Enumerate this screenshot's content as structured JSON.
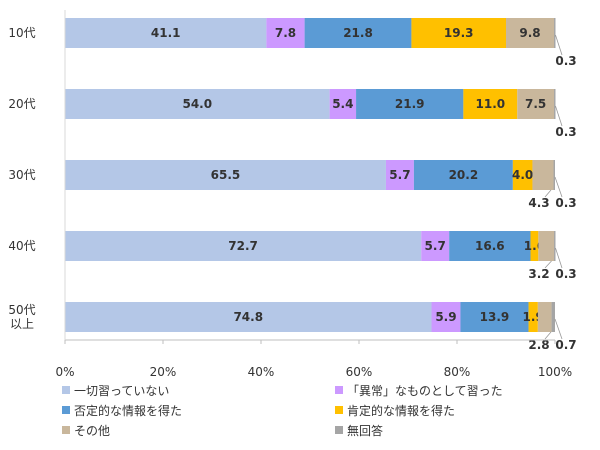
{
  "chart_data": {
    "type": "bar",
    "orientation": "horizontal",
    "stacked": true,
    "categories": [
      [
        "10代"
      ],
      [
        "20代"
      ],
      [
        "30代"
      ],
      [
        "40代"
      ],
      [
        "50代",
        "以上"
      ]
    ],
    "series": [
      {
        "name": "一切習っていない",
        "color": "#b4c7e7",
        "values": [
          41.1,
          54.0,
          65.5,
          72.7,
          74.8
        ]
      },
      {
        "name": "「異常」なものとして習った",
        "color": "#cc99ff",
        "values": [
          7.8,
          5.4,
          5.7,
          5.7,
          5.9
        ]
      },
      {
        "name": "否定的な情報を得た",
        "color": "#5b9bd5",
        "values": [
          21.8,
          21.9,
          20.2,
          16.6,
          13.9
        ]
      },
      {
        "name": "肯定的な情報を得た",
        "color": "#ffc000",
        "values": [
          19.3,
          11.0,
          4.0,
          1.6,
          1.9
        ]
      },
      {
        "name": "その他",
        "color": "#c9b79c",
        "values": [
          9.8,
          7.5,
          4.3,
          3.2,
          2.8
        ]
      },
      {
        "name": "無回答",
        "color": "#a5a5a5",
        "values": [
          0.3,
          0.3,
          0.3,
          0.3,
          0.7
        ]
      }
    ],
    "labels": [
      [
        "41.1",
        "7.8",
        "21.8",
        "19.3",
        "9.8",
        "0.3"
      ],
      [
        "54.0",
        "5.4",
        "21.9",
        "11.0",
        "7.5",
        "0.3"
      ],
      [
        "65.5",
        "5.7",
        "20.2",
        "4.0",
        "4.3",
        "0.3"
      ],
      [
        "72.7",
        "5.7",
        "16.6",
        "1.6",
        "3.2",
        "0.3"
      ],
      [
        "74.8",
        "5.9",
        "13.9",
        "1.9",
        "2.8",
        "0.7"
      ]
    ],
    "outside_labels": [
      [
        false,
        false,
        false,
        false,
        false,
        true
      ],
      [
        false,
        false,
        false,
        false,
        false,
        true
      ],
      [
        false,
        false,
        false,
        false,
        true,
        true
      ],
      [
        false,
        false,
        false,
        false,
        true,
        true
      ],
      [
        false,
        false,
        false,
        false,
        true,
        true
      ]
    ],
    "xlim": [
      0,
      100
    ],
    "xticks": [
      "0%",
      "20%",
      "40%",
      "60%",
      "80%",
      "100%"
    ],
    "grid": false,
    "legend_position": "bottom",
    "title": "",
    "xlabel": "",
    "ylabel": ""
  }
}
